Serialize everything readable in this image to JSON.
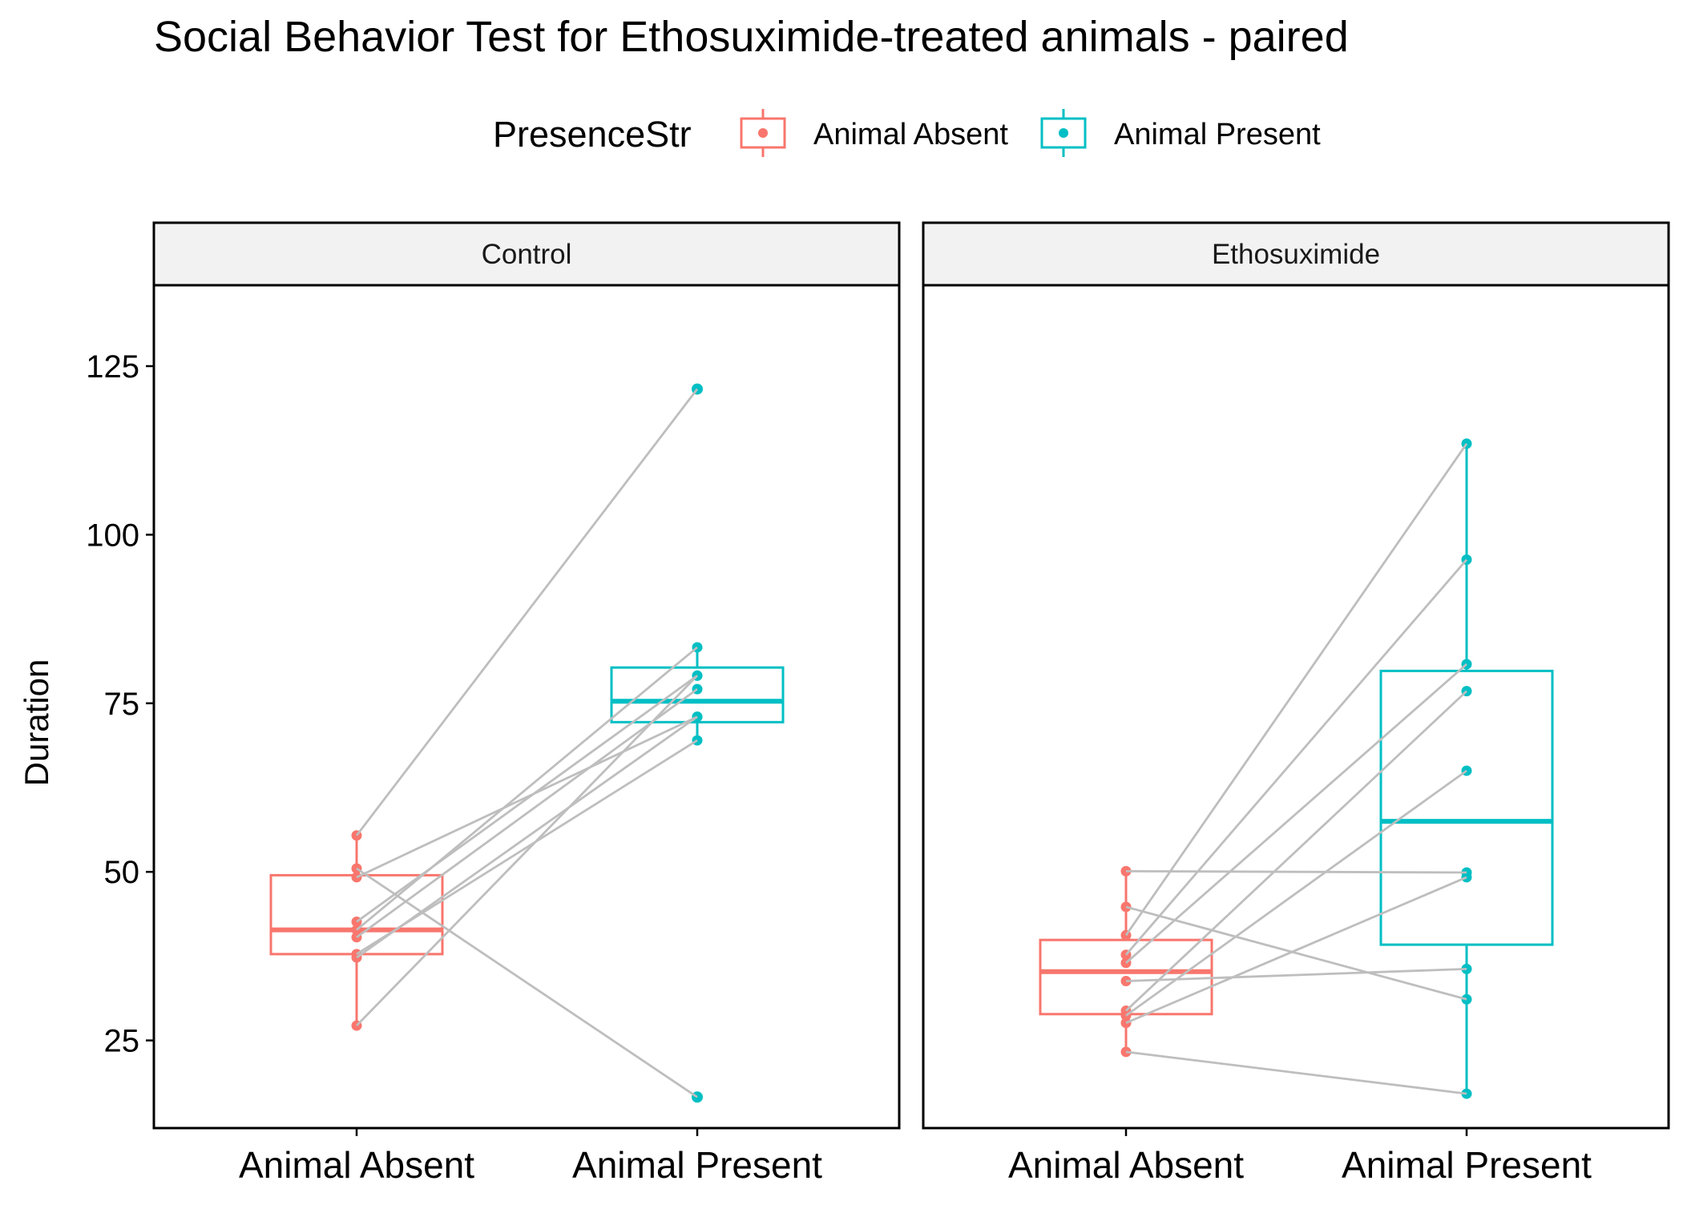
{
  "chart_data": {
    "type": "boxplot-paired",
    "title": "Social Behavior Test for Ethosuximide-treated animals - paired",
    "ylabel": "Duration",
    "xlabel": "",
    "ylim": [
      12,
      137
    ],
    "y_ticks": [
      25,
      50,
      75,
      100,
      125
    ],
    "categories": [
      "Animal Absent",
      "Animal Present"
    ],
    "legend": {
      "title": "PresenceStr",
      "position": "top",
      "entries": [
        "Animal Absent",
        "Animal Present"
      ]
    },
    "colors": {
      "Animal Absent": "#F8766D",
      "Animal Present": "#00BFC4",
      "paired_line": "#BEBEBE",
      "strip_fill": "#F2F2F2"
    },
    "grid": false,
    "facets": [
      {
        "name": "Control",
        "boxes": {
          "Animal Absent": {
            "min": 27.2,
            "q1": 37.8,
            "median": 41.4,
            "q3": 49.5,
            "max": 55.4
          },
          "Animal Present": {
            "min": 69.5,
            "q1": 72.2,
            "median": 75.3,
            "q3": 80.3,
            "max": 83.3
          }
        },
        "outliers": {
          "Animal Absent": [],
          "Animal Present": [
            121.6,
            16.6
          ]
        },
        "pairs": [
          [
            55.4,
            121.6
          ],
          [
            50.5,
            16.6
          ],
          [
            49.2,
            73.0
          ],
          [
            42.6,
            79.1
          ],
          [
            41.4,
            83.3
          ],
          [
            40.3,
            77.1
          ],
          [
            37.8,
            69.5
          ],
          [
            37.3,
            73.0
          ],
          [
            27.2,
            79.1
          ]
        ]
      },
      {
        "name": "Ethosuximide",
        "boxes": {
          "Animal Absent": {
            "min": 23.3,
            "q1": 28.9,
            "median": 35.2,
            "q3": 39.9,
            "max": 50.1
          },
          "Animal Present": {
            "min": 17.1,
            "q1": 39.2,
            "median": 57.5,
            "q3": 79.8,
            "max": 113.5
          }
        },
        "outliers": {
          "Animal Absent": [],
          "Animal Present": []
        },
        "pairs": [
          [
            50.1,
            49.9
          ],
          [
            44.8,
            31.1
          ],
          [
            40.6,
            113.5
          ],
          [
            37.7,
            96.3
          ],
          [
            36.5,
            80.8
          ],
          [
            33.8,
            35.6
          ],
          [
            29.4,
            76.8
          ],
          [
            28.7,
            65.0
          ],
          [
            27.6,
            49.2
          ],
          [
            23.3,
            17.1
          ]
        ]
      }
    ]
  }
}
